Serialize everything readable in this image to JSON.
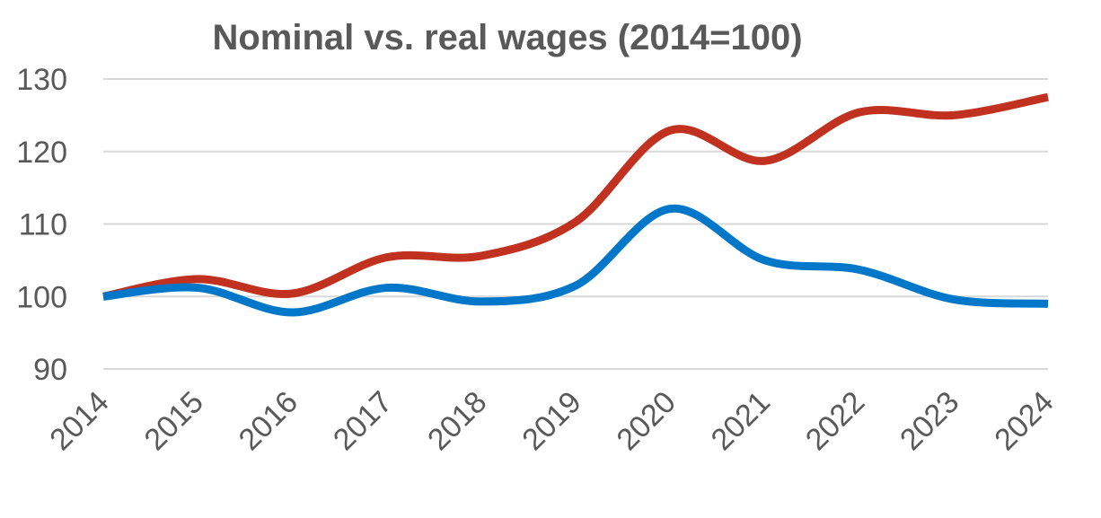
{
  "chart_data": {
    "type": "line",
    "title": "Nominal vs. real  wages (2014=100)",
    "xlabel": "",
    "ylabel": "",
    "categories": [
      "2014",
      "2015",
      "2016",
      "2017",
      "2018",
      "2019",
      "2020",
      "2021",
      "2022",
      "2023",
      "2024"
    ],
    "ylim": [
      90,
      130
    ],
    "yticks": [
      90,
      100,
      110,
      120,
      130
    ],
    "grid": true,
    "smoothed": true,
    "legend": "none",
    "series": [
      {
        "color": "#C0311F",
        "values": [
          100,
          102.4,
          100.4,
          105.4,
          105.6,
          110.3,
          122.9,
          118.7,
          125.4,
          125.0,
          127.5
        ]
      },
      {
        "color": "#0077C8",
        "values": [
          100,
          101.2,
          97.8,
          101.2,
          99.3,
          101.5,
          112.1,
          105.0,
          103.7,
          99.6,
          99.0
        ]
      }
    ]
  }
}
